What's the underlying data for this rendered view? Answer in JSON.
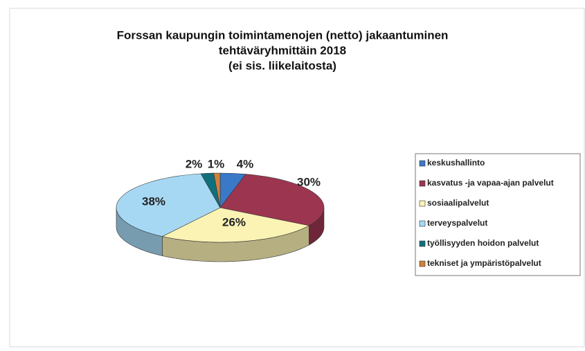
{
  "chart_data": {
    "type": "pie",
    "title": [
      "Forssan kaupungin toimintamenojen (netto) jakaantuminen",
      "tehtäväryhmittäin 2018",
      "(ei sis. liikelaitosta)"
    ],
    "categories": [
      "keskushallinto",
      "kasvatus -ja vapaa-ajan palvelut",
      "sosiaalipalvelut",
      "terveyspalvelut",
      "työllisyyden hoidon palvelut",
      "tekniset ja ympäristöpalvelut"
    ],
    "values": [
      4,
      30,
      26,
      38,
      2,
      1
    ],
    "value_labels": [
      "4%",
      "30%",
      "26%",
      "38%",
      "2%",
      "1%"
    ],
    "colors": [
      "#3a78c8",
      "#9b3550",
      "#fbf3b4",
      "#a6d8f3",
      "#0f6f7c",
      "#d0803a"
    ],
    "legend": "right"
  }
}
